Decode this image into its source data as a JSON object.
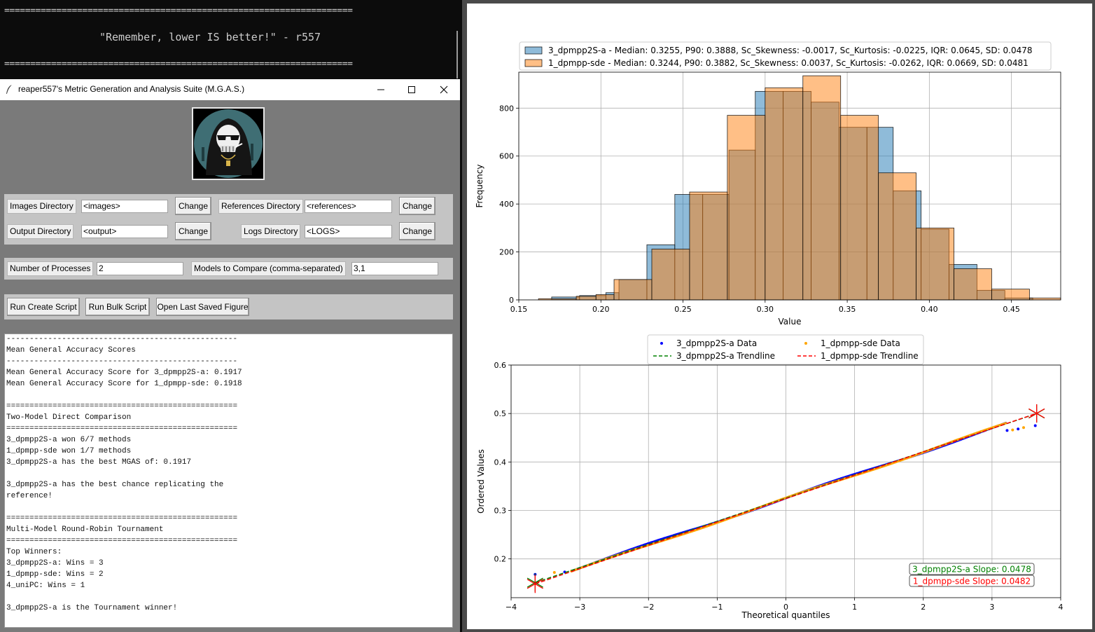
{
  "terminal": {
    "rule_top": "===================================================================",
    "quote": "\"Remember, lower IS better!\" - r557",
    "rule_bottom": "==================================================================="
  },
  "window": {
    "title": "reaper557's Metric Generation and Analysis Suite (M.G.A.S.)",
    "icons": [
      "feather-icon",
      "minimize-icon",
      "maximize-icon",
      "close-icon"
    ]
  },
  "dirs": {
    "images_label": "Images Directory",
    "images_value": "<images>",
    "references_label": "References Directory",
    "references_value": "<references>",
    "output_label": "Output Directory",
    "output_value": "<output>",
    "logs_label": "Logs Directory",
    "logs_value": "<LOGS>",
    "change_label": "Change"
  },
  "proc": {
    "processes_label": "Number of Processes",
    "processes_value": "2",
    "models_label": "Models to Compare (comma-separated)",
    "models_value": "3,1"
  },
  "actions": {
    "create": "Run Create Script",
    "bulk": "Run Bulk Script",
    "open": "Open Last Saved Figure"
  },
  "output_lines": [
    "--------------------------------------------------",
    "Mean General Accuracy Scores",
    "--------------------------------------------------",
    "Mean General Accuracy Score for 3_dpmpp2S-a: 0.1917",
    "Mean General Accuracy Score for 1_dpmpp-sde: 0.1918",
    "",
    "==================================================",
    "Two-Model Direct Comparison",
    "==================================================",
    "3_dpmpp2S-a won 6/7 methods",
    "1_dpmpp-sde won 1/7 methods",
    "3_dpmpp2S-a has the best MGAS of: 0.1917",
    "",
    "3_dpmpp2S-a has the best chance replicating the",
    "reference!",
    "",
    "==================================================",
    "Multi-Model Round-Robin Tournament",
    "==================================================",
    "Top Winners:",
    "3_dpmpp2S-a: Wins = 3",
    "1_dpmpp-sde: Wins = 2",
    "4_uniPC: Wins = 1",
    "",
    "3_dpmpp2S-a is the Tournament winner!"
  ],
  "chart_data": [
    {
      "type": "bar",
      "chart_kind": "histogram",
      "xlabel": "Value",
      "ylabel": "Frequency",
      "xlim": [
        0.15,
        0.48
      ],
      "ylim": [
        0,
        950
      ],
      "xticks": [
        "0.15",
        "0.20",
        "0.25",
        "0.30",
        "0.35",
        "0.40",
        "0.45"
      ],
      "yticks": [
        "0",
        "200",
        "400",
        "600",
        "800"
      ],
      "grid": true,
      "legend_position": "top",
      "series": [
        {
          "name": "3_dpmpp2S-a - Median: 0.3255, P90: 0.3888, Sc_Skewness: -0.0017, Sc_Kurtosis: -0.0225, IQR: 0.0645, SD: 0.0478",
          "color": "#1f77b4",
          "bins": [
            [
              0.17,
              0.187,
              12
            ],
            [
              0.187,
              0.203,
              18
            ],
            [
              0.203,
              0.211,
              30
            ],
            [
              0.211,
              0.228,
              85
            ],
            [
              0.228,
              0.245,
              230
            ],
            [
              0.245,
              0.262,
              440
            ],
            [
              0.262,
              0.278,
              440
            ],
            [
              0.278,
              0.294,
              625
            ],
            [
              0.294,
              0.311,
              870
            ],
            [
              0.311,
              0.328,
              870
            ],
            [
              0.328,
              0.345,
              825
            ],
            [
              0.345,
              0.362,
              720
            ],
            [
              0.362,
              0.378,
              720
            ],
            [
              0.378,
              0.395,
              455
            ],
            [
              0.395,
              0.412,
              295
            ],
            [
              0.412,
              0.429,
              148
            ],
            [
              0.429,
              0.446,
              40
            ],
            [
              0.446,
              0.463,
              8
            ]
          ]
        },
        {
          "name": "1_dpmpp-sde - Median: 0.3244, P90: 0.3882, Sc_Skewness: 0.0037, Sc_Kurtosis: -0.0262, IQR: 0.0669, SD: 0.0481",
          "color": "#ff7f0e",
          "bins": [
            [
              0.162,
              0.185,
              5
            ],
            [
              0.185,
              0.197,
              15
            ],
            [
              0.197,
              0.208,
              22
            ],
            [
              0.208,
              0.231,
              85
            ],
            [
              0.231,
              0.254,
              212
            ],
            [
              0.254,
              0.277,
              450
            ],
            [
              0.277,
              0.3,
              770
            ],
            [
              0.3,
              0.323,
              885
            ],
            [
              0.323,
              0.346,
              935
            ],
            [
              0.346,
              0.369,
              770
            ],
            [
              0.369,
              0.392,
              530
            ],
            [
              0.392,
              0.415,
              300
            ],
            [
              0.415,
              0.438,
              130
            ],
            [
              0.438,
              0.461,
              45
            ],
            [
              0.461,
              0.48,
              8
            ]
          ]
        }
      ]
    },
    {
      "type": "scatter",
      "chart_kind": "qq-plot",
      "xlabel": "Theoretical quantiles",
      "ylabel": "Ordered Values",
      "xlim": [
        -4,
        4
      ],
      "ylim": [
        0.12,
        0.6
      ],
      "xticks": [
        "−4",
        "−3",
        "−2",
        "−1",
        "0",
        "1",
        "2",
        "3",
        "4"
      ],
      "yticks": [
        "0.2",
        "0.3",
        "0.4",
        "0.5",
        "0.6"
      ],
      "grid": true,
      "legend_position": "top",
      "series": [
        {
          "name": "3_dpmpp2S-a Data",
          "color": "#0000ff",
          "marker": "dot",
          "intercept": 0.3255,
          "slope": 0.0478
        },
        {
          "name": "1_dpmpp-sde Data",
          "color": "#ffa500",
          "marker": "dot",
          "intercept": 0.3244,
          "slope": 0.0482
        },
        {
          "name": "3_dpmpp2S-a Trendline",
          "color": "#008000",
          "dash": true,
          "slope": 0.0478
        },
        {
          "name": "1_dpmpp-sde Trendline",
          "color": "#ff0000",
          "dash": true,
          "slope": 0.0482
        }
      ],
      "outliers": [
        [
          -3.65,
          0.168
        ],
        [
          -3.37,
          0.172
        ],
        [
          -3.22,
          0.173
        ],
        [
          -3.12,
          0.175
        ],
        [
          3.22,
          0.465
        ],
        [
          3.3,
          0.466
        ],
        [
          3.38,
          0.468
        ],
        [
          3.46,
          0.471
        ],
        [
          3.63,
          0.475
        ]
      ],
      "annotations": [
        {
          "text": "3_dpmpp2S-a Slope: 0.0478",
          "color": "#008000"
        },
        {
          "text": "1_dpmpp-sde Slope: 0.0482",
          "color": "#ff0000"
        }
      ]
    }
  ]
}
